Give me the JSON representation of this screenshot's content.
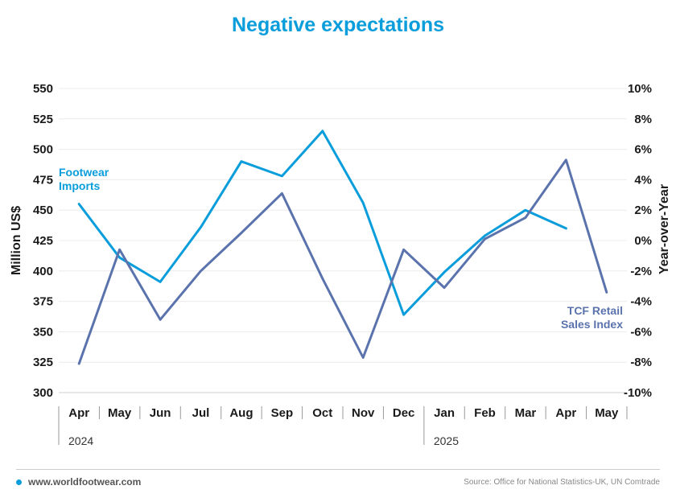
{
  "chart_data": {
    "type": "line",
    "title": "Negative expectations",
    "categories": [
      "Apr",
      "May",
      "Jun",
      "Jul",
      "Aug",
      "Sep",
      "Oct",
      "Nov",
      "Dec",
      "Jan",
      "Feb",
      "Mar",
      "Apr",
      "May"
    ],
    "years": [
      {
        "label": "2024",
        "start_index": 0
      },
      {
        "label": "2025",
        "start_index": 9
      }
    ],
    "ylabel_left": "Million US$",
    "ylabel_right": "Year-over-Year",
    "ylim_left": [
      300,
      550
    ],
    "ylim_right": [
      -10,
      10
    ],
    "yticks_left": [
      "550",
      "525",
      "500",
      "475",
      "450",
      "425",
      "400",
      "375",
      "350",
      "325",
      "300"
    ],
    "yticks_right": [
      "10%",
      "8%",
      "6%",
      "4%",
      "2%",
      "0%",
      "-2%",
      "-4%",
      "-6%",
      "-8%",
      "-10%"
    ],
    "grid": true,
    "series": [
      {
        "name": "Footwear Imports",
        "label_lines": [
          "Footwear",
          "Imports"
        ],
        "axis": "left",
        "color": "#0a9ddb",
        "values": [
          455,
          411,
          391,
          436,
          490,
          478,
          515,
          456,
          364,
          399,
          429,
          450,
          435,
          null
        ]
      },
      {
        "name": "TCF Retail Sales Index",
        "label_lines": [
          "TCF Retail",
          "Sales Index"
        ],
        "axis": "right",
        "color": "#5b73ad",
        "values": [
          -8.1,
          -0.6,
          -5.2,
          -2.0,
          0.5,
          3.1,
          -2.5,
          -7.7,
          -0.6,
          -3.1,
          0.1,
          1.5,
          5.3,
          -3.4
        ]
      }
    ]
  },
  "footer": {
    "website": "www.worldfootwear.com",
    "source": "Source: Office for National Statistics-UK, UN Comtrade",
    "accent_color": "#0a9ddb"
  }
}
